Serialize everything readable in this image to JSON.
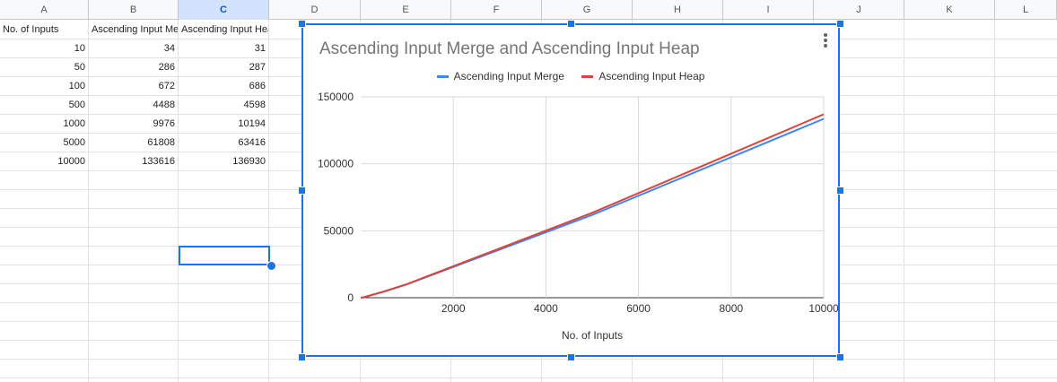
{
  "columns": [
    "A",
    "B",
    "C",
    "D",
    "E",
    "F",
    "G",
    "H",
    "I",
    "J",
    "K",
    "L"
  ],
  "active_column": "C",
  "table": {
    "headers": [
      "No. of Inputs",
      "Ascending Input Me",
      "Ascending Input Heap"
    ],
    "rows": [
      [
        "10",
        "34",
        "31"
      ],
      [
        "50",
        "286",
        "287"
      ],
      [
        "100",
        "672",
        "686"
      ],
      [
        "500",
        "4488",
        "4598"
      ],
      [
        "1000",
        "9976",
        "10194"
      ],
      [
        "5000",
        "61808",
        "63416"
      ],
      [
        "10000",
        "133616",
        "136930"
      ]
    ]
  },
  "colors": {
    "merge": "#4285f4",
    "heap": "#db4437",
    "selection": "#1a73e8"
  },
  "chart_data": {
    "type": "line",
    "title": "Ascending Input Merge and Ascending Input Heap",
    "xlabel": "No. of Inputs",
    "ylabel": "",
    "x": [
      10,
      50,
      100,
      500,
      1000,
      5000,
      10000
    ],
    "series": [
      {
        "name": "Ascending Input Merge",
        "values": [
          34,
          286,
          672,
          4488,
          9976,
          61808,
          133616
        ]
      },
      {
        "name": "Ascending Input Heap",
        "values": [
          31,
          287,
          686,
          4598,
          10194,
          63416,
          136930
        ]
      }
    ],
    "xlim": [
      0,
      10000
    ],
    "ylim": [
      0,
      150000
    ],
    "xticks": [
      "2000",
      "4000",
      "6000",
      "8000",
      "10000"
    ],
    "yticks": [
      "0",
      "50000",
      "100000",
      "150000"
    ],
    "legend": "top-center",
    "grid": true
  }
}
